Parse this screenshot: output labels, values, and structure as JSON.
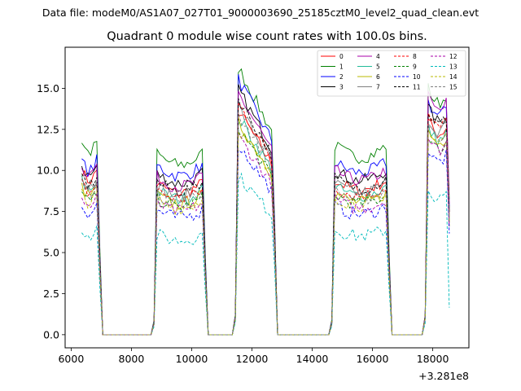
{
  "chart_data": {
    "type": "line",
    "suptitle": "Data file: modeM0/AS1A07_027T01_9000003690_25185cztM0_level2_quad_clean.evt",
    "title": "Quadrant 0 module wise count rates with 100.0s bins.",
    "xlabel": "",
    "ylabel": "",
    "x_offset_label": "+3.281e8",
    "xlim": [
      5800,
      19200
    ],
    "ylim": [
      -0.8,
      17.5
    ],
    "xticks": [
      6000,
      8000,
      10000,
      12000,
      14000,
      16000,
      18000
    ],
    "yticks": [
      0.0,
      2.5,
      5.0,
      7.5,
      10.0,
      12.5,
      15.0
    ],
    "ytick_labels": [
      "0.0",
      "2.5",
      "5.0",
      "7.5",
      "10.0",
      "12.5",
      "15.0"
    ],
    "legend_position": "top-right",
    "segments": [
      {
        "start": 6350,
        "end": 6850
      },
      {
        "start": 8850,
        "end": 10350
      },
      {
        "start": 11550,
        "end": 12650
      },
      {
        "start": 14750,
        "end": 16450
      },
      {
        "start": 17850,
        "end": 18550
      }
    ],
    "gap_edges": [
      [
        7000,
        8650
      ],
      [
        10450,
        11450
      ],
      [
        12750,
        14650
      ],
      [
        16600,
        17750
      ]
    ],
    "series": [
      {
        "name": "0",
        "color": "#ff0000",
        "style": "solid",
        "levels": [
          10.0,
          9.2,
          13.0,
          9.4,
          13.0
        ]
      },
      {
        "name": "1",
        "color": "#008000",
        "style": "solid",
        "levels": [
          11.8,
          11.0,
          15.5,
          11.5,
          15.0
        ]
      },
      {
        "name": "2",
        "color": "#0000ff",
        "style": "solid",
        "levels": [
          10.6,
          10.3,
          14.8,
          10.5,
          14.2
        ]
      },
      {
        "name": "3",
        "color": "#000000",
        "style": "solid",
        "levels": [
          10.3,
          9.8,
          14.2,
          10.0,
          13.8
        ]
      },
      {
        "name": "4",
        "color": "#aa00aa",
        "style": "solid",
        "levels": [
          10.4,
          9.6,
          14.0,
          10.0,
          14.5
        ]
      },
      {
        "name": "5",
        "color": "#22bb99",
        "style": "solid",
        "levels": [
          9.4,
          8.8,
          12.6,
          9.0,
          12.6
        ]
      },
      {
        "name": "6",
        "color": "#bbbb00",
        "style": "solid",
        "levels": [
          9.0,
          8.5,
          12.3,
          8.6,
          12.4
        ]
      },
      {
        "name": "7",
        "color": "#808080",
        "style": "solid",
        "levels": [
          9.6,
          9.0,
          13.2,
          9.2,
          13.2
        ]
      },
      {
        "name": "8",
        "color": "#ff0000",
        "style": "dashed",
        "levels": [
          9.2,
          8.8,
          13.4,
          9.0,
          13.4
        ]
      },
      {
        "name": "9",
        "color": "#008000",
        "style": "dashed",
        "levels": [
          8.6,
          8.3,
          12.0,
          8.5,
          12.0
        ]
      },
      {
        "name": "10",
        "color": "#0000ff",
        "style": "dashed",
        "levels": [
          7.9,
          7.6,
          11.0,
          7.8,
          11.2
        ]
      },
      {
        "name": "11",
        "color": "#000000",
        "style": "dashed",
        "levels": [
          9.7,
          9.3,
          13.7,
          9.5,
          13.6
        ]
      },
      {
        "name": "12",
        "color": "#aa00aa",
        "style": "dashed",
        "levels": [
          8.3,
          8.0,
          11.5,
          8.2,
          12.0
        ]
      },
      {
        "name": "13",
        "color": "#00bbbb",
        "style": "dashed",
        "levels": [
          6.5,
          6.1,
          9.2,
          6.4,
          8.8
        ]
      },
      {
        "name": "14",
        "color": "#bbbb00",
        "style": "dashed",
        "levels": [
          8.6,
          8.2,
          12.0,
          8.4,
          12.5
        ]
      },
      {
        "name": "15",
        "color": "#808080",
        "style": "dashed",
        "levels": [
          9.3,
          8.6,
          12.8,
          8.8,
          12.8
        ]
      }
    ]
  }
}
